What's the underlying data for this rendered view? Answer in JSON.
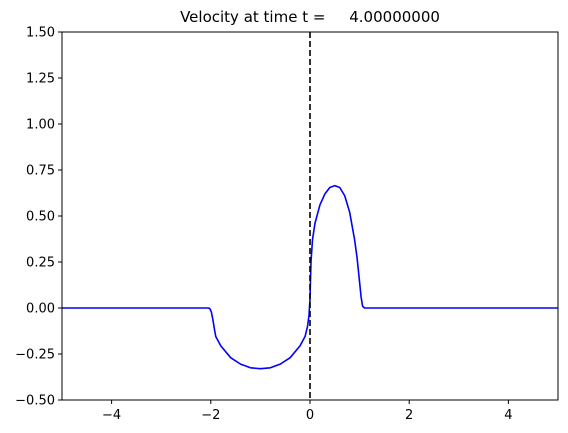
{
  "chart_data": {
    "type": "line",
    "title": "Velocity at time t =     4.00000000",
    "xlabel": "",
    "ylabel": "",
    "xlim": [
      -5,
      5
    ],
    "ylim": [
      -0.5,
      1.5
    ],
    "grid": false,
    "x_ticks": [
      -4,
      -2,
      0,
      2,
      4
    ],
    "x_tick_labels": [
      "−4",
      "−2",
      "0",
      "2",
      "4"
    ],
    "y_ticks": [
      -0.5,
      -0.25,
      0.0,
      0.25,
      0.5,
      0.75,
      1.0,
      1.25,
      1.5
    ],
    "y_tick_labels": [
      "−0.50",
      "−0.25",
      "0.00",
      "0.25",
      "0.50",
      "0.75",
      "1.00",
      "1.25",
      "1.50"
    ],
    "series": [
      {
        "color": "#0000ff",
        "x": [
          -5,
          -2.05,
          -2.02,
          -1.99,
          -1.96,
          -1.93,
          -1.9,
          -1.8,
          -1.6,
          -1.4,
          -1.2,
          -1.0,
          -0.8,
          -0.6,
          -0.4,
          -0.2,
          -0.1,
          -0.05,
          -0.02,
          0.0,
          0.02,
          0.05,
          0.1,
          0.2,
          0.3,
          0.4,
          0.5,
          0.6,
          0.7,
          0.8,
          0.9,
          0.95,
          1.0,
          1.03,
          1.06,
          1.1,
          5
        ],
        "y": [
          0.0,
          0.0,
          -0.003,
          -0.02,
          -0.06,
          -0.11,
          -0.155,
          -0.205,
          -0.27,
          -0.305,
          -0.325,
          -0.33,
          -0.325,
          -0.305,
          -0.27,
          -0.205,
          -0.155,
          -0.1,
          -0.04,
          0.05,
          0.25,
          0.37,
          0.46,
          0.56,
          0.62,
          0.655,
          0.665,
          0.655,
          0.61,
          0.52,
          0.37,
          0.27,
          0.14,
          0.06,
          0.01,
          0.0,
          0.0
        ]
      }
    ],
    "vlines": [
      {
        "x": 0,
        "color": "#000000",
        "style": "dashed"
      }
    ]
  }
}
